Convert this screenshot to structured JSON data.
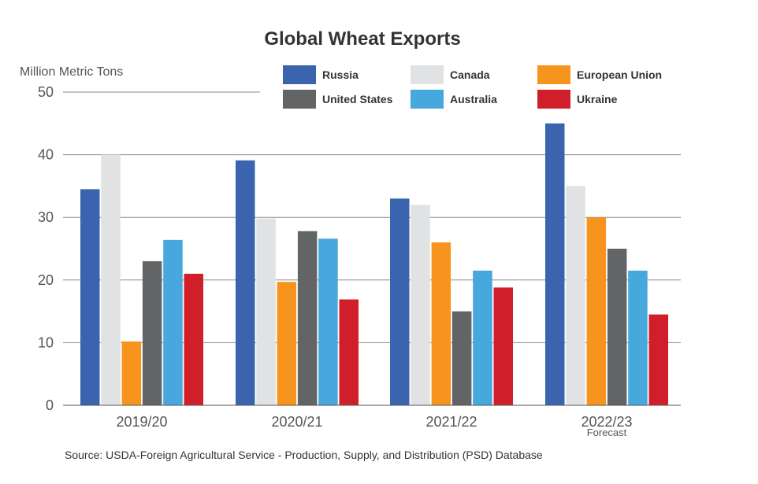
{
  "chart_data": {
    "type": "bar",
    "title": "Global Wheat Exports",
    "ylabel": "Million Metric Tons",
    "ylim": [
      0,
      50
    ],
    "yticks": [
      0,
      10,
      20,
      30,
      40,
      50
    ],
    "grid": true,
    "legend_position": "top-right",
    "categories": [
      "2019/20",
      "2020/21",
      "2021/22",
      "2022/23"
    ],
    "category_notes": [
      "",
      "",
      "",
      "Forecast"
    ],
    "series": [
      {
        "name": "Russia",
        "color": "#3a64ae",
        "values": [
          34.5,
          39.1,
          33.0,
          45.0
        ]
      },
      {
        "name": "Canada",
        "color": "#e1e2e4",
        "values": [
          40.0,
          29.8,
          32.0,
          35.0
        ]
      },
      {
        "name": "European Union",
        "color": "#f7941d",
        "values": [
          10.2,
          19.7,
          26.0,
          30.0
        ]
      },
      {
        "name": "United States",
        "color": "#636466",
        "values": [
          23.0,
          27.8,
          15.0,
          25.0
        ]
      },
      {
        "name": "Australia",
        "color": "#47a8de",
        "values": [
          26.4,
          26.6,
          21.5,
          21.5
        ]
      },
      {
        "name": "Ukraine",
        "color": "#d01f2a",
        "values": [
          21.0,
          16.9,
          18.8,
          14.5
        ]
      }
    ],
    "legend_order": [
      "Russia",
      "Canada",
      "European Union",
      "United States",
      "Australia",
      "Ukraine"
    ],
    "source": "Source: USDA-Foreign Agricultural Service - Production, Supply, and Distribution (PSD) Database"
  }
}
